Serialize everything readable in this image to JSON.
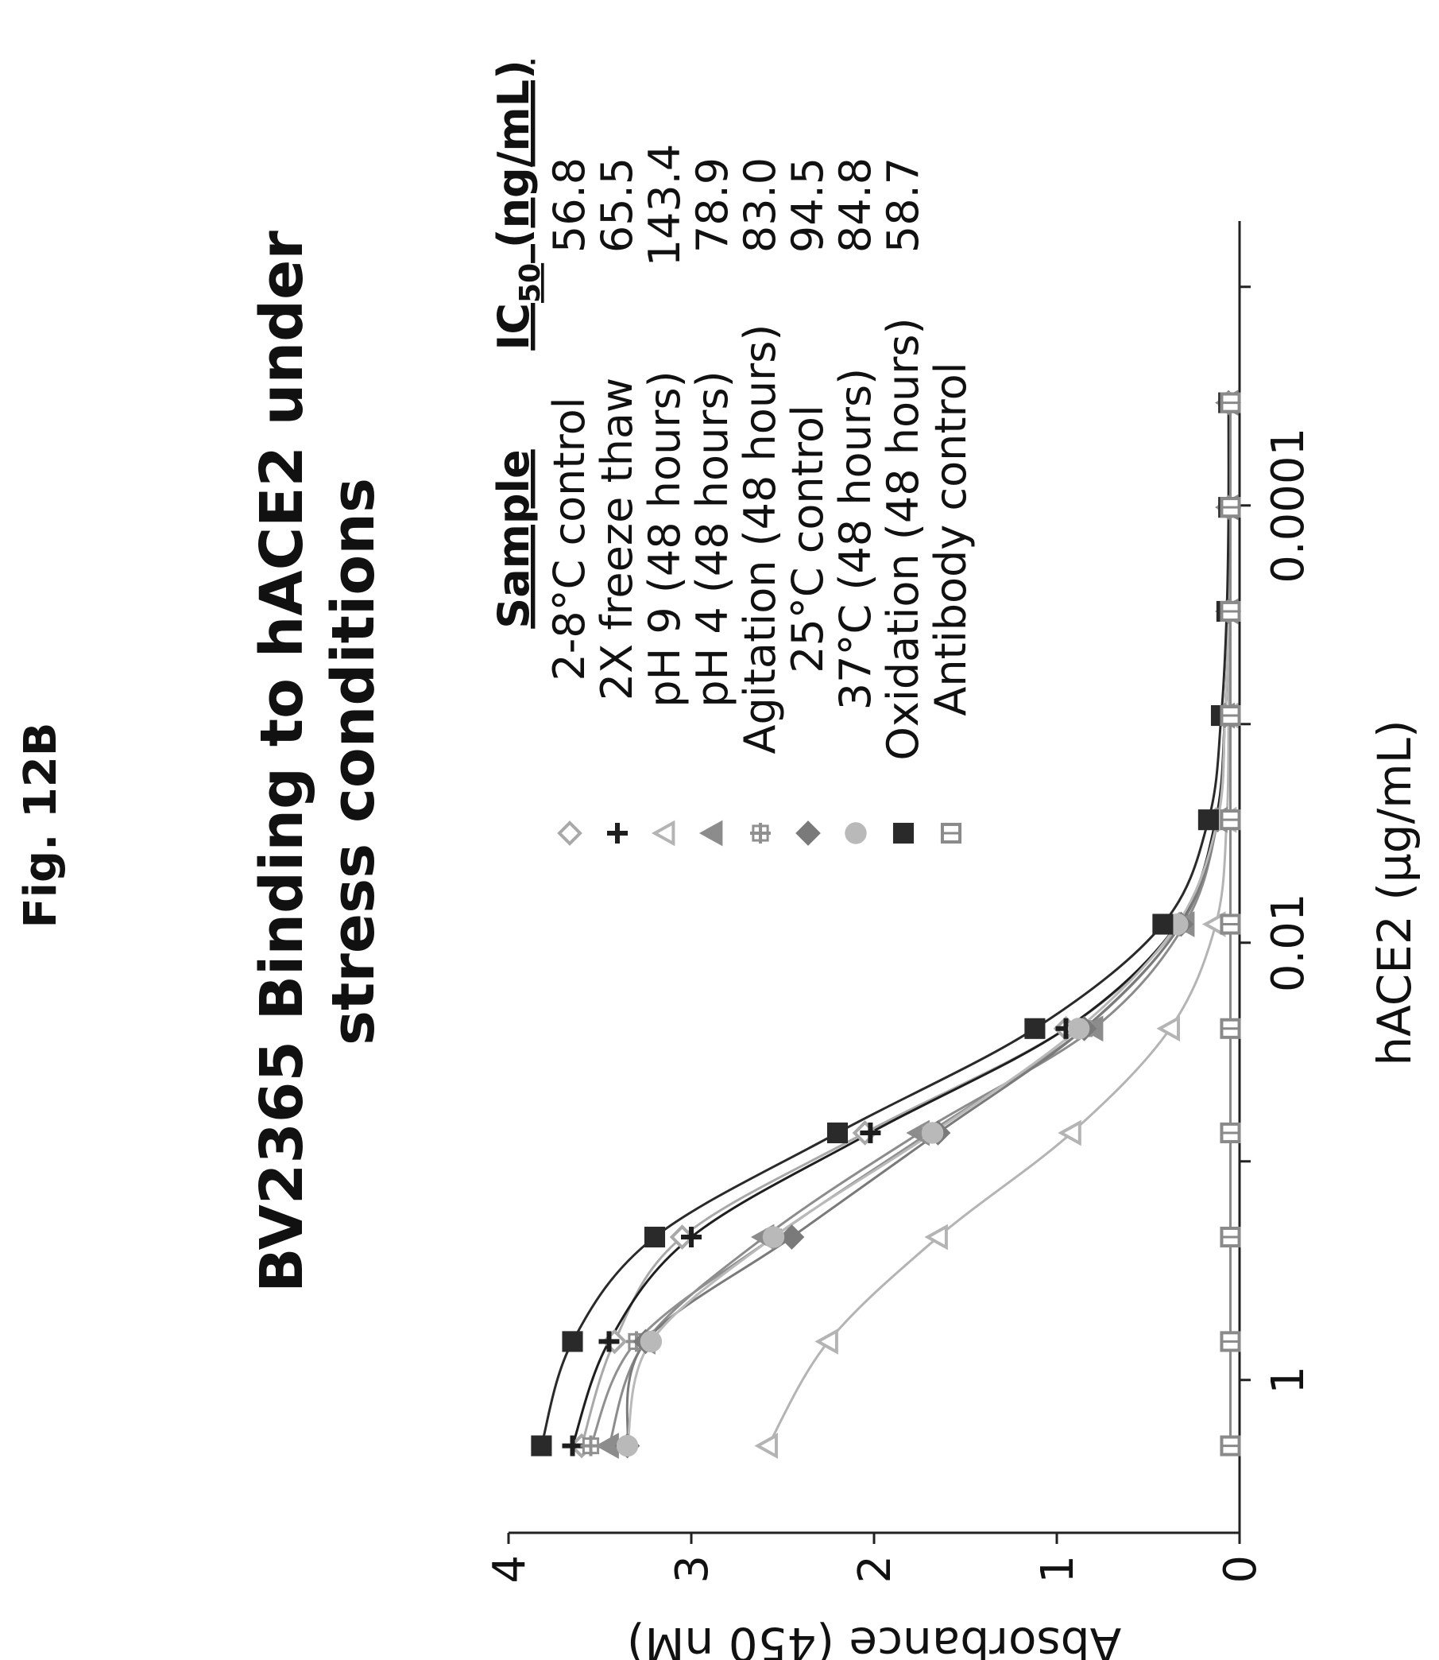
{
  "figure_label": "Fig. 12B",
  "colors": {
    "axis": "#222222",
    "text": "#111111",
    "series": [
      "#a9a9a9",
      "#1e1e1e",
      "#b4b4b4",
      "#8c8c8c",
      "#909090",
      "#7a7a7a",
      "#b9b9b9",
      "#2a2a2a",
      "#8a8a8a"
    ]
  },
  "chart_data": {
    "type": "line",
    "title_lines": [
      "BV2365 Binding to hACE2 under",
      "stress conditions"
    ],
    "xlabel": "hACE2 (µg/mL)",
    "ylabel": "Absorbance (450 nM)",
    "x_scale": "log",
    "x_reversed": true,
    "xlim": [
      5,
      5e-06
    ],
    "ylim": [
      0,
      4
    ],
    "x_ticks": [
      1,
      0.01,
      0.0001
    ],
    "x_tick_labels": [
      "1",
      "0.01",
      "0.0001"
    ],
    "y_ticks": [
      0,
      1,
      2,
      3,
      4
    ],
    "y_tick_labels": [
      "0",
      "1",
      "2",
      "3",
      "4"
    ],
    "grid": false,
    "legend_position": "top-right",
    "legend_header": "Sample",
    "ic50_header": "IC50 (ng/mL)",
    "ic50_header_main": "IC",
    "ic50_header_sub": "50",
    "ic50_header_unit": " (ng/mL)",
    "x": [
      2,
      0.667,
      0.222,
      0.0741,
      0.0247,
      0.00823,
      0.00274,
      0.000914,
      0.000305,
      0.000102,
      3.39e-05
    ],
    "series": [
      {
        "name": "2-8°C control",
        "ic50": "56.8",
        "marker": "diamond-open",
        "values": [
          3.6,
          3.42,
          3.05,
          2.05,
          0.95,
          0.33,
          0.13,
          0.08,
          0.06,
          0.06,
          0.06
        ]
      },
      {
        "name": "2X freeze thaw",
        "ic50": "65.5",
        "marker": "plus",
        "values": [
          3.65,
          3.45,
          3.0,
          2.02,
          0.95,
          0.34,
          0.13,
          0.08,
          0.06,
          0.06,
          0.06
        ]
      },
      {
        "name": "pH 9 (48 hours)",
        "ic50": "143.4",
        "marker": "triangle-open",
        "values": [
          2.58,
          2.25,
          1.65,
          0.92,
          0.38,
          0.13,
          0.07,
          0.06,
          0.06,
          0.06,
          0.06
        ]
      },
      {
        "name": "pH 4 (48 hours)",
        "ic50": "78.9",
        "marker": "triangle",
        "values": [
          3.45,
          3.25,
          2.6,
          1.75,
          0.8,
          0.3,
          0.12,
          0.08,
          0.06,
          0.06,
          0.06
        ]
      },
      {
        "name": "Agitation (48 hours)",
        "ic50": "83.0",
        "marker": "plus-box",
        "values": [
          3.55,
          3.3,
          2.55,
          1.7,
          0.85,
          0.32,
          0.12,
          0.08,
          0.06,
          0.06,
          0.06
        ]
      },
      {
        "name": "25°C control",
        "ic50": "94.5",
        "marker": "diamond",
        "values": [
          3.35,
          3.25,
          2.45,
          1.65,
          0.85,
          0.32,
          0.12,
          0.08,
          0.06,
          0.06,
          0.06
        ]
      },
      {
        "name": "37°C (48 hours)",
        "ic50": "84.8",
        "marker": "circle",
        "values": [
          3.35,
          3.22,
          2.55,
          1.68,
          0.88,
          0.34,
          0.12,
          0.08,
          0.06,
          0.06,
          0.06
        ]
      },
      {
        "name": "Oxidation (48 hours)",
        "ic50": "",
        "marker": "square",
        "values": [
          3.82,
          3.65,
          3.2,
          2.2,
          1.12,
          0.42,
          0.17,
          0.1,
          0.07,
          0.06,
          0.06
        ]
      },
      {
        "name": "Antibody control",
        "ic50": "58.7",
        "marker": "square-open",
        "values": [
          0.05,
          0.05,
          0.05,
          0.05,
          0.05,
          0.05,
          0.05,
          0.05,
          0.05,
          0.05,
          0.05
        ]
      }
    ]
  }
}
